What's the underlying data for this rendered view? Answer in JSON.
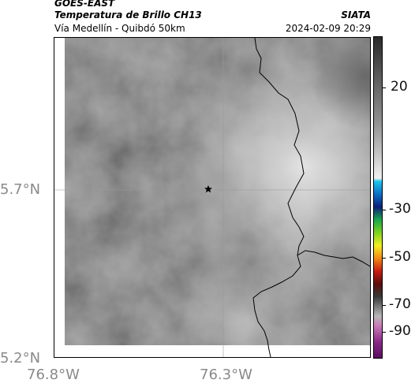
{
  "header": {
    "source": "GOES-EAST",
    "product": "Temperatura de Brillo CH13",
    "region": "Vía Medellín - Quibdó 50km",
    "org": "SIATA",
    "datetime": "2024-02-09 20:29"
  },
  "map": {
    "lat_ticks": [
      "5.7°N",
      "5.2°N"
    ],
    "lon_ticks": [
      "76.8°W",
      "76.3°W"
    ],
    "marker_icon": "star-marker-icon"
  },
  "colorbar": {
    "labels": [
      "20",
      "-30",
      "-50",
      "-70",
      "-90"
    ]
  },
  "colors": {
    "cloud_dark": "#6c6c6c",
    "cloud_light": "#d6d6d6",
    "border_line": "#000000"
  }
}
